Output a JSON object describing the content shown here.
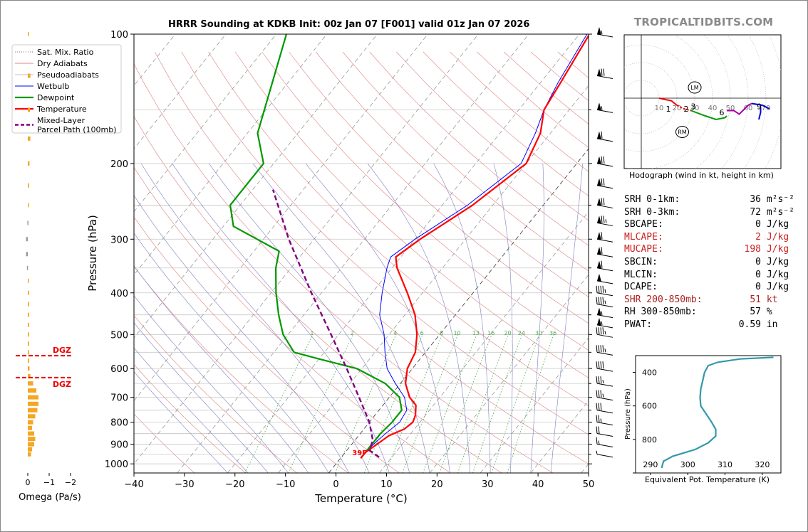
{
  "brand": "TROPICALTIDBITS.COM",
  "title": "HRRR Sounding at KDKB Init: 00z Jan 07 [F001] valid 01z Jan 07 2026",
  "colors": {
    "temperature": "#ff0000",
    "dewpoint": "#009900",
    "wetbulb": "#0000ff",
    "parcel": "#800080",
    "dry_adiabat": "#e08080",
    "moist_adiabat": "#8080c0",
    "mixing_ratio": "#55aa55",
    "omega": "#f5a623",
    "theta_e": "#3399aa",
    "red_text": "#cc2222",
    "dark_red_text": "#aa2222"
  },
  "chart_data": {
    "type": "skew-t",
    "xlabel": "Temperature (°C)",
    "ylabel": "Pressure (hPa)",
    "xlim": [
      -40,
      50
    ],
    "ylim": [
      1050,
      100
    ],
    "x_ticks": [
      "−40",
      "−30",
      "−20",
      "−10",
      "0",
      "10",
      "20",
      "30",
      "40",
      "50"
    ],
    "y_ticks": [
      100,
      200,
      300,
      400,
      500,
      600,
      700,
      800,
      900,
      1000
    ],
    "mixing_ratio_labels": [
      "1",
      "2",
      "4",
      "6",
      "8",
      "10",
      "13",
      "16",
      "20",
      "24",
      "30",
      "36"
    ],
    "surface_temp_label": "39F",
    "legend": [
      {
        "label": "Sat. Mix. Ratio",
        "style": "dotted",
        "color": "#777777"
      },
      {
        "label": "Dry Adiabats",
        "style": "solid-thin",
        "color": "#e08080"
      },
      {
        "label": "Pseudoadiabats",
        "style": "solid-thin",
        "color": "#c0c0c0"
      },
      {
        "label": "Wetbulb",
        "style": "solid-thin",
        "color": "#0000ff"
      },
      {
        "label": "Dewpoint",
        "style": "solid",
        "color": "#009900"
      },
      {
        "label": "Temperature",
        "style": "solid",
        "color": "#ff0000"
      },
      {
        "label": "Mixed-Layer\nParcel Path (100mb)",
        "style": "dashed",
        "color": "#800080"
      }
    ],
    "temperature": [
      {
        "p": 970,
        "t": 4
      },
      {
        "p": 940,
        "t": 4
      },
      {
        "p": 900,
        "t": 5
      },
      {
        "p": 860,
        "t": 6
      },
      {
        "p": 830,
        "t": 8
      },
      {
        "p": 800,
        "t": 8.6
      },
      {
        "p": 770,
        "t": 8
      },
      {
        "p": 730,
        "t": 6.5
      },
      {
        "p": 700,
        "t": 4
      },
      {
        "p": 650,
        "t": 1
      },
      {
        "p": 600,
        "t": -1
      },
      {
        "p": 550,
        "t": -2
      },
      {
        "p": 500,
        "t": -4.5
      },
      {
        "p": 450,
        "t": -8
      },
      {
        "p": 400,
        "t": -13
      },
      {
        "p": 350,
        "t": -19
      },
      {
        "p": 330,
        "t": -21
      },
      {
        "p": 300,
        "t": -19
      },
      {
        "p": 250,
        "t": -14
      },
      {
        "p": 200,
        "t": -10
      },
      {
        "p": 170,
        "t": -12
      },
      {
        "p": 150,
        "t": -15
      },
      {
        "p": 130,
        "t": -16
      },
      {
        "p": 100,
        "t": -18
      }
    ],
    "dewpoint": [
      {
        "p": 970,
        "t": 4
      },
      {
        "p": 900,
        "t": 4
      },
      {
        "p": 850,
        "t": 4
      },
      {
        "p": 800,
        "t": 4.5
      },
      {
        "p": 750,
        "t": 4.5
      },
      {
        "p": 700,
        "t": 2
      },
      {
        "p": 650,
        "t": -3
      },
      {
        "p": 600,
        "t": -11
      },
      {
        "p": 570,
        "t": -20
      },
      {
        "p": 550,
        "t": -26
      },
      {
        "p": 500,
        "t": -31
      },
      {
        "p": 450,
        "t": -35
      },
      {
        "p": 400,
        "t": -39
      },
      {
        "p": 350,
        "t": -43
      },
      {
        "p": 320,
        "t": -45
      },
      {
        "p": 280,
        "t": -58
      },
      {
        "p": 250,
        "t": -62
      },
      {
        "p": 200,
        "t": -62
      },
      {
        "p": 170,
        "t": -68
      },
      {
        "p": 100,
        "t": -78
      }
    ],
    "wetbulb": [
      {
        "p": 970,
        "t": 4
      },
      {
        "p": 900,
        "t": 4.3
      },
      {
        "p": 850,
        "t": 5
      },
      {
        "p": 800,
        "t": 6
      },
      {
        "p": 750,
        "t": 5.5
      },
      {
        "p": 700,
        "t": 3
      },
      {
        "p": 650,
        "t": -1
      },
      {
        "p": 600,
        "t": -5
      },
      {
        "p": 550,
        "t": -8
      },
      {
        "p": 500,
        "t": -11
      },
      {
        "p": 450,
        "t": -15
      },
      {
        "p": 400,
        "t": -18
      },
      {
        "p": 350,
        "t": -21
      },
      {
        "p": 330,
        "t": -22
      },
      {
        "p": 300,
        "t": -20
      },
      {
        "p": 250,
        "t": -15
      },
      {
        "p": 200,
        "t": -11
      },
      {
        "p": 170,
        "t": -13
      },
      {
        "p": 150,
        "t": -15
      },
      {
        "p": 130,
        "t": -16.5
      },
      {
        "p": 100,
        "t": -18.5
      }
    ],
    "parcel": [
      {
        "p": 965,
        "t": 7.5
      },
      {
        "p": 930,
        "t": 4.5
      },
      {
        "p": 880,
        "t": 3.5
      },
      {
        "p": 800,
        "t": 0
      },
      {
        "p": 700,
        "t": -6
      },
      {
        "p": 600,
        "t": -13
      },
      {
        "p": 500,
        "t": -21.5
      },
      {
        "p": 400,
        "t": -32
      },
      {
        "p": 300,
        "t": -45
      },
      {
        "p": 230,
        "t": -56
      }
    ],
    "omega": {
      "xlabel": "Omega (Pa/s)",
      "x_ticks": [
        "0",
        "−1",
        "−2"
      ],
      "dgz_label": "DGZ",
      "dgz_bounds_hpa": [
        560,
        630
      ],
      "bars": [
        {
          "p": 100,
          "w": 0.05
        },
        {
          "p": 125,
          "w": 0.12
        },
        {
          "p": 150,
          "w": 0.1
        },
        {
          "p": 175,
          "w": 0.12
        },
        {
          "p": 200,
          "w": 0.08
        },
        {
          "p": 225,
          "w": 0.06
        },
        {
          "p": 250,
          "w": 0.03
        },
        {
          "p": 275,
          "w": -0.02
        },
        {
          "p": 300,
          "w": -0.08
        },
        {
          "p": 325,
          "w": -0.08
        },
        {
          "p": 350,
          "w": -0.04
        },
        {
          "p": 375,
          "w": 0.04
        },
        {
          "p": 400,
          "w": 0.06
        },
        {
          "p": 425,
          "w": 0.06
        },
        {
          "p": 450,
          "w": 0.06
        },
        {
          "p": 475,
          "w": 0.06
        },
        {
          "p": 500,
          "w": 0.06
        },
        {
          "p": 525,
          "w": 0.06
        },
        {
          "p": 550,
          "w": 0.06
        },
        {
          "p": 575,
          "w": 0.06
        },
        {
          "p": 600,
          "w": 0.08
        },
        {
          "p": 625,
          "w": 0.12
        },
        {
          "p": 650,
          "w": 0.25
        },
        {
          "p": 675,
          "w": 0.4
        },
        {
          "p": 700,
          "w": 0.5
        },
        {
          "p": 725,
          "w": 0.5
        },
        {
          "p": 750,
          "w": 0.45
        },
        {
          "p": 775,
          "w": 0.35
        },
        {
          "p": 800,
          "w": 0.25
        },
        {
          "p": 825,
          "w": 0.2
        },
        {
          "p": 850,
          "w": 0.3
        },
        {
          "p": 875,
          "w": 0.35
        },
        {
          "p": 900,
          "w": 0.3
        },
        {
          "p": 925,
          "w": 0.2
        },
        {
          "p": 950,
          "w": 0.15
        }
      ]
    },
    "wind_barbs": [
      {
        "p": 100,
        "kt": 55
      },
      {
        "p": 125,
        "kt": 70
      },
      {
        "p": 150,
        "kt": 55
      },
      {
        "p": 175,
        "kt": 60
      },
      {
        "p": 200,
        "kt": 70
      },
      {
        "p": 225,
        "kt": 70
      },
      {
        "p": 250,
        "kt": 70
      },
      {
        "p": 275,
        "kt": 75
      },
      {
        "p": 300,
        "kt": 60
      },
      {
        "p": 325,
        "kt": 60
      },
      {
        "p": 350,
        "kt": 60
      },
      {
        "p": 375,
        "kt": 50
      },
      {
        "p": 400,
        "kt": 45
      },
      {
        "p": 425,
        "kt": 45
      },
      {
        "p": 450,
        "kt": 55
      },
      {
        "p": 475,
        "kt": 55
      },
      {
        "p": 500,
        "kt": 45
      },
      {
        "p": 550,
        "kt": 45
      },
      {
        "p": 600,
        "kt": 40
      },
      {
        "p": 650,
        "kt": 35
      },
      {
        "p": 700,
        "kt": 35
      },
      {
        "p": 750,
        "kt": 30
      },
      {
        "p": 800,
        "kt": 25
      },
      {
        "p": 850,
        "kt": 20
      },
      {
        "p": 900,
        "kt": 15
      },
      {
        "p": 950,
        "kt": 5
      }
    ]
  },
  "hodograph": {
    "caption": "Hodograph (wind in kt, height in km)",
    "ring_labels": [
      "10",
      "20",
      "30",
      "40",
      "50",
      "60",
      "70"
    ],
    "height_labels": [
      "1",
      "2",
      "3",
      "6",
      "9"
    ],
    "lm_label": "LM",
    "rm_label": "RM"
  },
  "params": [
    {
      "label": "SRH 0-1km:",
      "value": "36",
      "unit": "m²s⁻²",
      "color": "#000000"
    },
    {
      "label": "SRH 0-3km:",
      "value": "72",
      "unit": "m²s⁻²",
      "color": "#000000"
    },
    {
      "label": "SBCAPE:",
      "value": "0",
      "unit": "J/kg",
      "color": "#000000"
    },
    {
      "label": "MLCAPE:",
      "value": "2",
      "unit": "J/kg",
      "color": "#cc2222"
    },
    {
      "label": "MUCAPE:",
      "value": "198",
      "unit": "J/kg",
      "color": "#cc2222"
    },
    {
      "label": "SBCIN:",
      "value": "0",
      "unit": "J/kg",
      "color": "#000000"
    },
    {
      "label": "MLCIN:",
      "value": "0",
      "unit": "J/kg",
      "color": "#000000"
    },
    {
      "label": "DCAPE:",
      "value": "0",
      "unit": "J/kg",
      "color": "#000000"
    },
    {
      "label": "SHR 200-850mb:",
      "value": "51",
      "unit": "kt",
      "color": "#aa2222"
    },
    {
      "label": "RH 300-850mb:",
      "value": "57",
      "unit": "%",
      "color": "#000000"
    },
    {
      "label": "PWAT:",
      "value": "0.59",
      "unit": "in",
      "color": "#000000"
    }
  ],
  "theta_e": {
    "xlabel": "Equivalent Pot. Temperature (K)",
    "ylabel": "Pressure (hPa)",
    "x_ticks": [
      290,
      300,
      310,
      320
    ],
    "y_ticks": [
      400,
      600,
      800
    ],
    "xlim": [
      286,
      325
    ],
    "ylim": [
      1000,
      300
    ],
    "profile": [
      {
        "p": 970,
        "th": 293
      },
      {
        "p": 930,
        "th": 293.5
      },
      {
        "p": 900,
        "th": 296
      },
      {
        "p": 860,
        "th": 302
      },
      {
        "p": 820,
        "th": 305.5
      },
      {
        "p": 780,
        "th": 307.5
      },
      {
        "p": 740,
        "th": 307.5
      },
      {
        "p": 700,
        "th": 306.5
      },
      {
        "p": 650,
        "th": 305
      },
      {
        "p": 600,
        "th": 303.5
      },
      {
        "p": 550,
        "th": 303.3
      },
      {
        "p": 500,
        "th": 303.5
      },
      {
        "p": 450,
        "th": 304
      },
      {
        "p": 400,
        "th": 304.5
      },
      {
        "p": 360,
        "th": 305.5
      },
      {
        "p": 340,
        "th": 308
      },
      {
        "p": 320,
        "th": 314
      },
      {
        "p": 310,
        "th": 323
      }
    ]
  }
}
